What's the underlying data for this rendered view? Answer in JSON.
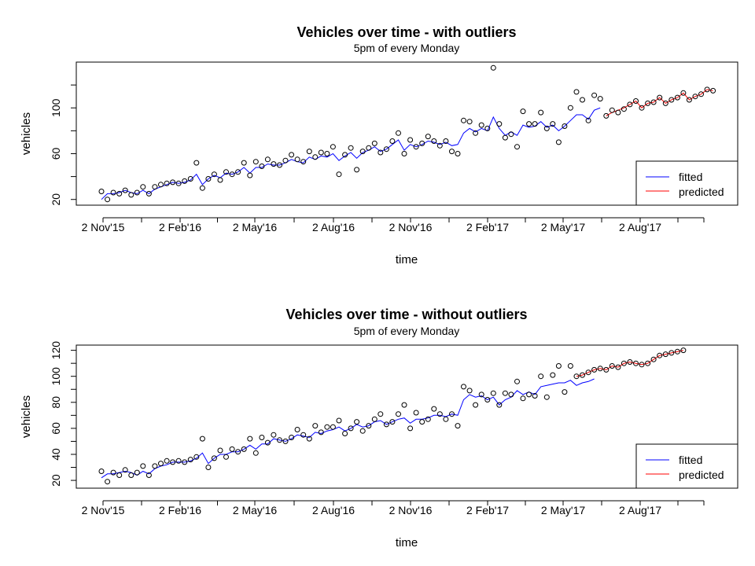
{
  "chart_data": [
    {
      "type": "line",
      "title": "Vehicles over time - with outliers",
      "subtitle": "5pm of every Monday",
      "xlabel": "time",
      "ylabel": "vehicles",
      "x_tick_labels": [
        "2 Nov'15",
        "2 Feb'16",
        "2 May'16",
        "2 Aug'16",
        "2 Nov'16",
        "2 Feb'17",
        "2 May'17",
        "2 Aug'17"
      ],
      "y_ticks": [
        20,
        60,
        100
      ],
      "ylim": [
        15,
        140
      ],
      "legend": {
        "position": "bottom-right",
        "entries": [
          {
            "label": "fitted",
            "color": "#0000ff"
          },
          {
            "label": "predicted",
            "color": "#ff0000"
          }
        ]
      },
      "observed": [
        27,
        20,
        26,
        25,
        28,
        24,
        26,
        31,
        25,
        31,
        33,
        34,
        35,
        34,
        36,
        38,
        52,
        30,
        38,
        42,
        37,
        44,
        42,
        44,
        52,
        41,
        53,
        49,
        55,
        51,
        50,
        54,
        59,
        55,
        53,
        62,
        57,
        61,
        60,
        66,
        42,
        59,
        65,
        46,
        62,
        65,
        69,
        61,
        64,
        71,
        78,
        60,
        72,
        66,
        69,
        75,
        71,
        67,
        71,
        62,
        60,
        89,
        88,
        78,
        85,
        82,
        135,
        86,
        74,
        77,
        66,
        97,
        86,
        86,
        96,
        82,
        86,
        70,
        84,
        100,
        114,
        107,
        89,
        111,
        108,
        93,
        98,
        96,
        99,
        103,
        106,
        100,
        104,
        105,
        109,
        104,
        107,
        109,
        113,
        107,
        110,
        112,
        116,
        115
      ],
      "fitted": [
        20,
        25,
        25,
        26,
        28,
        26,
        25,
        28,
        25,
        29,
        31,
        33,
        35,
        34,
        35,
        37,
        42,
        33,
        38,
        41,
        39,
        43,
        42,
        44,
        48,
        43,
        48,
        48,
        51,
        50,
        50,
        52,
        55,
        53,
        52,
        57,
        55,
        58,
        57,
        60,
        54,
        58,
        61,
        56,
        61,
        63,
        66,
        62,
        64,
        68,
        72,
        63,
        68,
        66,
        68,
        71,
        70,
        68,
        70,
        67,
        68,
        78,
        82,
        79,
        82,
        80,
        92,
        82,
        76,
        79,
        76,
        85,
        83,
        84,
        88,
        83,
        85,
        80,
        84,
        89,
        94,
        94,
        90,
        98,
        100
      ],
      "predicted": [
        93,
        96,
        98,
        100,
        103,
        106,
        100,
        104,
        105,
        109,
        104,
        107,
        109,
        113,
        107,
        110,
        112,
        116,
        115
      ]
    },
    {
      "type": "line",
      "title": "Vehicles over time - without outliers",
      "subtitle": "5pm of every Monday",
      "xlabel": "time",
      "ylabel": "vehicles",
      "x_tick_labels": [
        "2 Nov'15",
        "2 Feb'16",
        "2 May'16",
        "2 Aug'16",
        "2 Nov'16",
        "2 Feb'17",
        "2 May'17",
        "2 Aug'17"
      ],
      "y_ticks": [
        20,
        40,
        60,
        80,
        100,
        120
      ],
      "ylim": [
        14,
        124
      ],
      "legend": {
        "position": "bottom-right",
        "entries": [
          {
            "label": "fitted",
            "color": "#0000ff"
          },
          {
            "label": "predicted",
            "color": "#ff0000"
          }
        ]
      },
      "observed": [
        27,
        19,
        26,
        24,
        28,
        24,
        26,
        31,
        24,
        31,
        33,
        35,
        34,
        35,
        34,
        36,
        38,
        52,
        30,
        37,
        43,
        38,
        44,
        42,
        44,
        52,
        41,
        53,
        49,
        55,
        51,
        50,
        53,
        59,
        55,
        52,
        62,
        57,
        61,
        61,
        66,
        56,
        60,
        65,
        58,
        62,
        67,
        71,
        63,
        65,
        71,
        78,
        60,
        72,
        65,
        67,
        75,
        71,
        67,
        71,
        62,
        92,
        89,
        78,
        86,
        82,
        87,
        78,
        87,
        86,
        96,
        83,
        86,
        85,
        100,
        84,
        101,
        108,
        88,
        108,
        100,
        101,
        103,
        105,
        106,
        105,
        108,
        107,
        110,
        111,
        110,
        109,
        110,
        113,
        116,
        117,
        118,
        119,
        120
      ],
      "fitted": [
        22,
        25,
        25,
        26,
        27,
        26,
        24,
        27,
        25,
        29,
        31,
        32,
        34,
        34,
        34,
        35,
        37,
        41,
        33,
        37,
        40,
        40,
        42,
        42,
        44,
        47,
        44,
        48,
        48,
        52,
        51,
        50,
        52,
        55,
        54,
        53,
        57,
        56,
        58,
        59,
        61,
        58,
        60,
        63,
        61,
        62,
        65,
        66,
        63,
        65,
        67,
        68,
        64,
        67,
        67,
        68,
        70,
        70,
        69,
        71,
        70,
        82,
        86,
        84,
        85,
        82,
        84,
        78,
        82,
        84,
        89,
        86,
        88,
        86,
        92,
        93,
        94,
        95,
        95,
        97,
        93,
        95,
        96,
        98
      ],
      "predicted": [
        100,
        101,
        103,
        105,
        106,
        105,
        108,
        107,
        110,
        111,
        110,
        109,
        110,
        113,
        116,
        117,
        118,
        119,
        120
      ]
    }
  ]
}
